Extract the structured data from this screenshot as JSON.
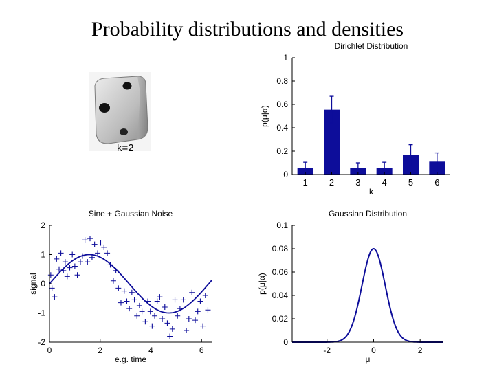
{
  "slide": {
    "title": "Probability distributions and densities",
    "die_label": "k=2"
  },
  "colors": {
    "series": "#0d0d9a",
    "axis": "#000000"
  },
  "chart_data": [
    {
      "id": "dirichlet",
      "type": "bar",
      "title": "Dirichlet Distribution",
      "xlabel": "k",
      "ylabel": "p(μ|α)",
      "categories": [
        "1",
        "2",
        "3",
        "4",
        "5",
        "6"
      ],
      "values": [
        0.055,
        0.555,
        0.055,
        0.055,
        0.165,
        0.11
      ],
      "errors": [
        0.05,
        0.115,
        0.045,
        0.05,
        0.09,
        0.075
      ],
      "ylim": [
        0,
        1
      ],
      "yticks": [
        0,
        0.2,
        0.4,
        0.6,
        0.8,
        1
      ],
      "ytick_labels": [
        "0",
        "0.2",
        "0.4",
        "0.6",
        "0.8",
        "1"
      ]
    },
    {
      "id": "sine",
      "type": "scatter",
      "title": "Sine + Gaussian Noise",
      "xlabel": "e.g. time",
      "ylabel": "signal",
      "xlim": [
        0,
        6.4
      ],
      "ylim": [
        -2,
        2
      ],
      "xticks": [
        0,
        2,
        4,
        6
      ],
      "yticks": [
        -2,
        -1,
        0,
        1,
        2
      ],
      "curve": "sin",
      "points": [
        [
          0.05,
          0.3
        ],
        [
          0.1,
          -0.15
        ],
        [
          0.2,
          -0.45
        ],
        [
          0.28,
          0.85
        ],
        [
          0.38,
          0.5
        ],
        [
          0.45,
          1.05
        ],
        [
          0.55,
          0.45
        ],
        [
          0.62,
          0.75
        ],
        [
          0.7,
          0.25
        ],
        [
          0.8,
          0.55
        ],
        [
          0.9,
          1.0
        ],
        [
          1.0,
          0.6
        ],
        [
          1.1,
          0.3
        ],
        [
          1.22,
          0.75
        ],
        [
          1.3,
          0.95
        ],
        [
          1.4,
          1.5
        ],
        [
          1.5,
          0.75
        ],
        [
          1.6,
          1.55
        ],
        [
          1.68,
          0.9
        ],
        [
          1.78,
          1.35
        ],
        [
          1.9,
          1.05
        ],
        [
          2.02,
          1.4
        ],
        [
          2.15,
          1.25
        ],
        [
          2.28,
          1.05
        ],
        [
          2.4,
          0.65
        ],
        [
          2.52,
          0.1
        ],
        [
          2.62,
          0.45
        ],
        [
          2.72,
          -0.15
        ],
        [
          2.82,
          -0.65
        ],
        [
          2.95,
          -0.25
        ],
        [
          3.05,
          -0.6
        ],
        [
          3.15,
          -0.85
        ],
        [
          3.25,
          -0.3
        ],
        [
          3.35,
          -0.55
        ],
        [
          3.45,
          -1.1
        ],
        [
          3.55,
          -0.75
        ],
        [
          3.65,
          -0.95
        ],
        [
          3.78,
          -1.3
        ],
        [
          3.88,
          -0.6
        ],
        [
          3.98,
          -0.95
        ],
        [
          4.05,
          -1.45
        ],
        [
          4.15,
          -1.1
        ],
        [
          4.25,
          -0.6
        ],
        [
          4.35,
          -0.45
        ],
        [
          4.45,
          -1.2
        ],
        [
          4.55,
          -0.8
        ],
        [
          4.65,
          -1.35
        ],
        [
          4.75,
          -1.8
        ],
        [
          4.85,
          -1.55
        ],
        [
          4.95,
          -0.55
        ],
        [
          5.05,
          -1.1
        ],
        [
          5.15,
          -0.85
        ],
        [
          5.28,
          -0.55
        ],
        [
          5.4,
          -1.6
        ],
        [
          5.5,
          -1.2
        ],
        [
          5.62,
          -0.3
        ],
        [
          5.75,
          -1.25
        ],
        [
          5.85,
          -0.95
        ],
        [
          5.95,
          -0.6
        ],
        [
          6.05,
          -1.45
        ],
        [
          6.15,
          -0.4
        ],
        [
          6.25,
          -0.9
        ]
      ]
    },
    {
      "id": "gaussian",
      "type": "line",
      "title": "Gaussian Distribution",
      "xlabel": "μ",
      "ylabel": "p(μ|α)",
      "xlim": [
        -3.5,
        3
      ],
      "ylim": [
        0,
        0.1
      ],
      "xticks": [
        -2,
        0,
        2
      ],
      "yticks": [
        0,
        0.02,
        0.04,
        0.06,
        0.08,
        0.1
      ],
      "ytick_labels": [
        "0",
        "0.02",
        "0.04",
        "0.06",
        "0.08",
        "0.1"
      ],
      "mean": 0,
      "std": 0.5,
      "peak": 0.08
    }
  ]
}
